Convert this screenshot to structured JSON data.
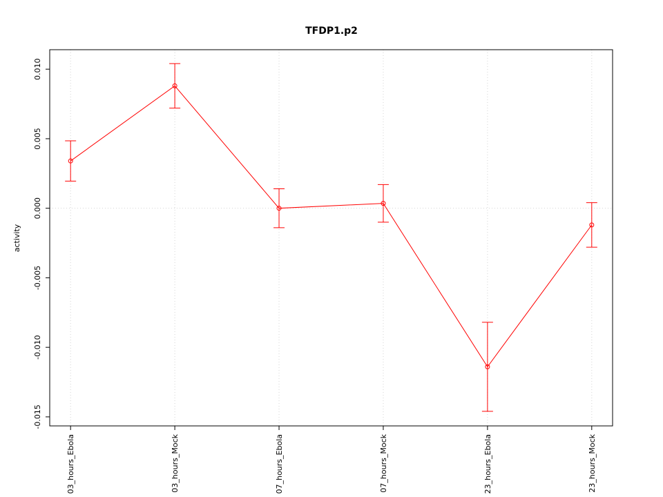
{
  "chart_data": {
    "type": "line",
    "title": "TFDP1.p2",
    "y_label": "activity",
    "categories": [
      "03_hours_Ebola",
      "03_hours_Mock",
      "07_hours_Ebola",
      "07_hours_Mock",
      "23_hours_Ebola",
      "23_hours_Mock"
    ],
    "series": [
      {
        "name": "activity",
        "color": "#ff0000",
        "values": [
          0.0034,
          0.0088,
          0.0,
          0.00035,
          -0.0114,
          -0.0012
        ],
        "errors": [
          0.00145,
          0.0016,
          0.0014,
          0.00135,
          0.0032,
          0.0016
        ]
      }
    ],
    "ylim": [
      -0.01565,
      0.0114
    ],
    "yticks": [
      {
        "value": -0.015,
        "label": "-0.015"
      },
      {
        "value": -0.01,
        "label": "-0.010"
      },
      {
        "value": -0.005,
        "label": "-0.005"
      },
      {
        "value": 0,
        "label": "0.000"
      },
      {
        "value": 0.005,
        "label": "0.005"
      },
      {
        "value": 0.01,
        "label": "0.010"
      }
    ],
    "reference_line": 0,
    "grid": true
  }
}
